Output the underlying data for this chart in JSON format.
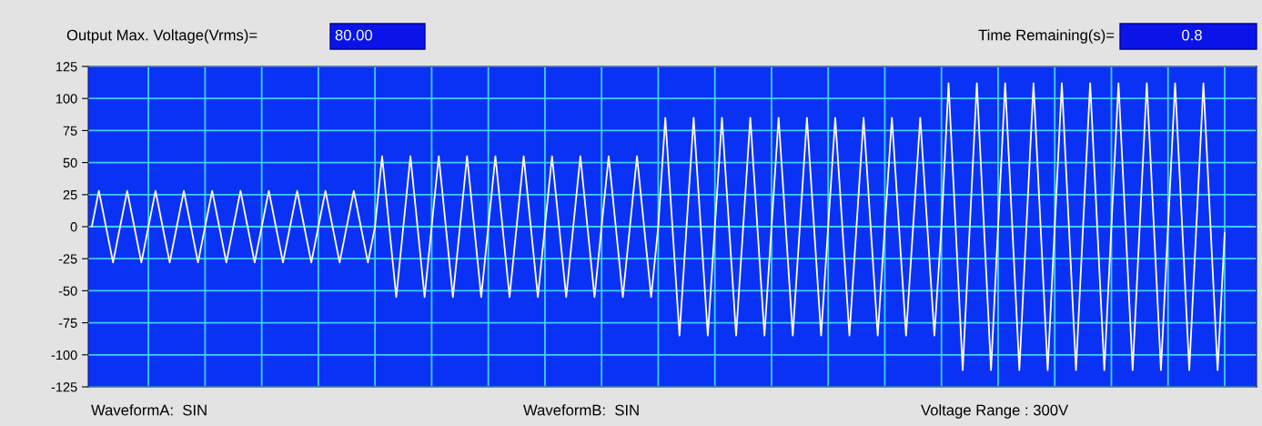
{
  "chart_data": {
    "type": "line",
    "annotations": [
      "Output Max. Voltage(Vrms)=",
      "80.00",
      "Time Remaining(s)=",
      "0.8",
      "WaveformA:  SIN",
      "WaveformB:  SIN",
      "Voltage Range : 300V"
    ],
    "categories": [
      null,
      null,
      null,
      null,
      null,
      null,
      null,
      null,
      null,
      null,
      null,
      null,
      null,
      null,
      null,
      null,
      null,
      null,
      null,
      null,
      null,
      null,
      null,
      null,
      null,
      null,
      null,
      null,
      null,
      null,
      null,
      null,
      null,
      null,
      null,
      null,
      null,
      null,
      null,
      null,
      null,
      null,
      null,
      null,
      null,
      null,
      null,
      null,
      null,
      null,
      null,
      null,
      null,
      null,
      null,
      null,
      null,
      null,
      null,
      null,
      null,
      null,
      null,
      null,
      null,
      null,
      null,
      null,
      null,
      null,
      null,
      null,
      null,
      null,
      null,
      null,
      null,
      null,
      null,
      null,
      null,
      null,
      null,
      null,
      null,
      null,
      null,
      null,
      null,
      null,
      null,
      null,
      null,
      null,
      null,
      null,
      null,
      null,
      null,
      null,
      null,
      null,
      null,
      null,
      null,
      null,
      null,
      null,
      null,
      null,
      null,
      null,
      null,
      null,
      null,
      null,
      null,
      null,
      null,
      null,
      null,
      null,
      null,
      null,
      null,
      null,
      null,
      null,
      null,
      null,
      null,
      null,
      null,
      null,
      null,
      null,
      null,
      null,
      null,
      null,
      null,
      null,
      null,
      null,
      null,
      null,
      null,
      null,
      null,
      null,
      null,
      null,
      null,
      null,
      null,
      null,
      null,
      null,
      null,
      null,
      null
    ],
    "series": [
      {
        "color": "#ffffff",
        "values": [
          0,
          28,
          0,
          -28,
          0,
          28,
          0,
          -28,
          0,
          28,
          0,
          -28,
          0,
          28,
          0,
          -28,
          0,
          28,
          0,
          -28,
          0,
          28,
          0,
          -28,
          0,
          28,
          0,
          -28,
          0,
          28,
          0,
          -28,
          0,
          28,
          0,
          -28,
          0,
          28,
          0,
          -28,
          0,
          55,
          0,
          -55,
          0,
          55,
          0,
          -55,
          0,
          55,
          0,
          -55,
          0,
          55,
          0,
          -55,
          0,
          55,
          0,
          -55,
          0,
          55,
          0,
          -55,
          0,
          55,
          0,
          -55,
          0,
          55,
          0,
          -55,
          0,
          55,
          0,
          -55,
          0,
          55,
          0,
          -55,
          0,
          85,
          0,
          -85,
          0,
          85,
          0,
          -85,
          0,
          85,
          0,
          -85,
          0,
          85,
          0,
          -85,
          0,
          85,
          0,
          -85,
          0,
          85,
          0,
          -85,
          0,
          85,
          0,
          -85,
          0,
          85,
          0,
          -85,
          0,
          85,
          0,
          -85,
          0,
          85,
          0,
          -85,
          0,
          112,
          0,
          -112,
          0,
          112,
          0,
          -112,
          0,
          112,
          0,
          -112,
          0,
          112,
          0,
          -112,
          0,
          112,
          0,
          -112,
          0,
          112,
          0,
          -112,
          0,
          112,
          0,
          -112,
          0,
          112,
          0,
          -112,
          0,
          112,
          0,
          -112,
          0,
          112,
          0,
          -112,
          -5
        ]
      }
    ],
    "ylim": [
      -125,
      125
    ],
    "yticks": [
      -125,
      -100,
      -75,
      -50,
      -25,
      0,
      25,
      50,
      75,
      100,
      125
    ],
    "grid": true,
    "tick_labels": "y",
    "marker": "none",
    "line_style": "solid"
  }
}
